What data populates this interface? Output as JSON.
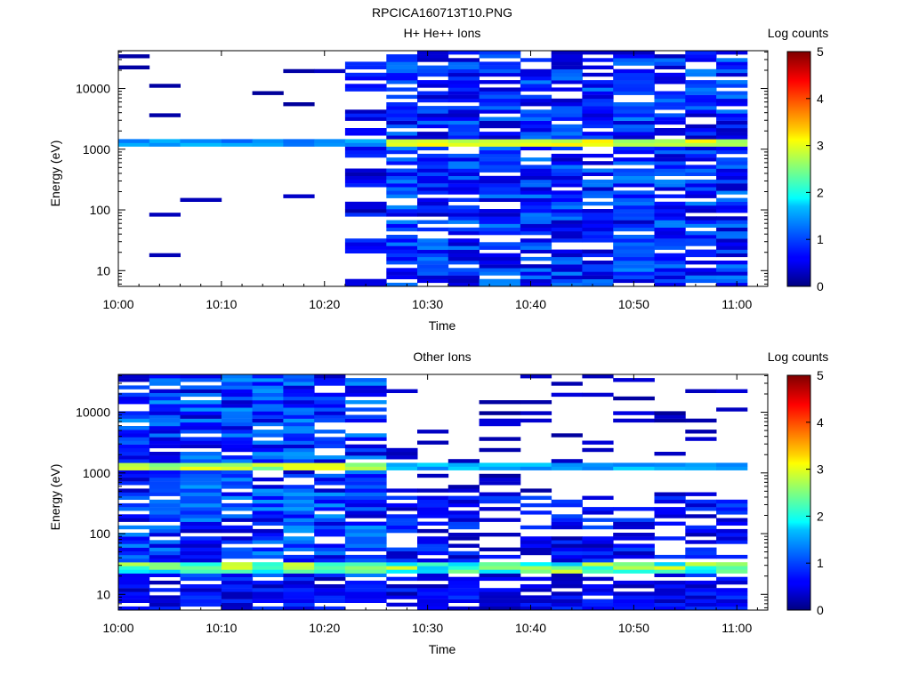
{
  "figure_title": "RPCICA160713T10.PNG",
  "chart_data": [
    {
      "type": "heatmap",
      "title": "H+ He++ Ions",
      "xlabel": "Time",
      "ylabel": "Energy (eV)",
      "y_scale": "log",
      "ylim": [
        5.5,
        42000
      ],
      "xlim": [
        "10:00",
        "11:03"
      ],
      "x_ticks": [
        "10:00",
        "10:10",
        "10:20",
        "10:30",
        "10:40",
        "10:50",
        "11:00"
      ],
      "y_ticks": [
        "10",
        "100",
        "1000",
        "10000"
      ],
      "time_bins": [
        "10:00",
        "10:03",
        "10:06",
        "10:10",
        "10:13",
        "10:16",
        "10:19",
        "10:22",
        "10:26",
        "10:29",
        "10:32",
        "10:35",
        "10:39",
        "10:42",
        "10:45",
        "10:48",
        "10:52",
        "10:55",
        "10:58"
      ],
      "colorbar": {
        "label": "Log counts",
        "min": 0,
        "max": 5,
        "ticks": [
          "0",
          "1",
          "2",
          "3",
          "4",
          "5"
        ]
      },
      "band_summary": {
        "proton_line_ev": 1300,
        "peak_log_counts": 3.2,
        "dense_coverage_starts": "10:26"
      }
    },
    {
      "type": "heatmap",
      "title": "Other Ions",
      "xlabel": "Time",
      "ylabel": "Energy (eV)",
      "y_scale": "log",
      "ylim": [
        5.5,
        42000
      ],
      "xlim": [
        "10:00",
        "11:03"
      ],
      "x_ticks": [
        "10:00",
        "10:10",
        "10:20",
        "10:30",
        "10:40",
        "10:50",
        "11:00"
      ],
      "y_ticks": [
        "10",
        "100",
        "1000",
        "10000"
      ],
      "time_bins": [
        "10:00",
        "10:03",
        "10:06",
        "10:10",
        "10:13",
        "10:16",
        "10:19",
        "10:22",
        "10:26",
        "10:29",
        "10:32",
        "10:35",
        "10:39",
        "10:42",
        "10:45",
        "10:48",
        "10:52",
        "10:55",
        "10:58"
      ],
      "colorbar": {
        "label": "Log counts",
        "min": 0,
        "max": 5,
        "ticks": [
          "0",
          "1",
          "2",
          "3",
          "4",
          "5"
        ]
      },
      "band_summary": {
        "line_ev": 1300,
        "low_energy_line_ev": 28,
        "peak_log_counts": 3.2,
        "dense_coverage_ends": "10:26"
      }
    }
  ]
}
